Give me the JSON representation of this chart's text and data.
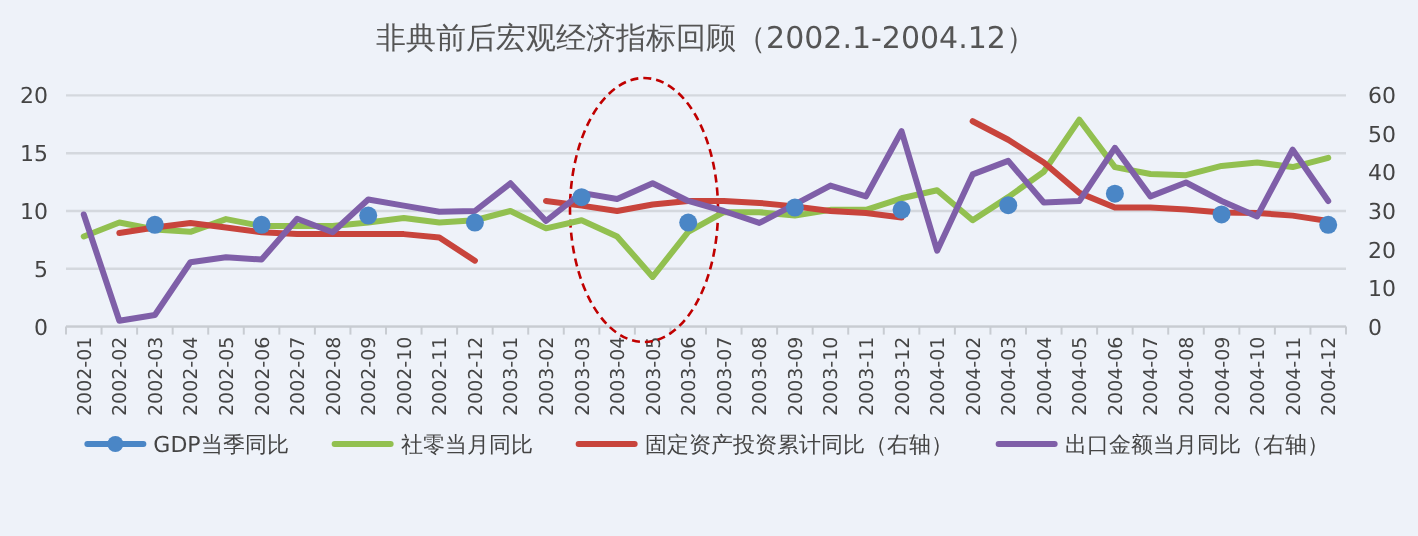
{
  "chart_data": {
    "type": "line",
    "title": "非典前后宏观经济指标回顾（2002.1-2004.12）",
    "categories": [
      "2002-01",
      "2002-02",
      "2002-03",
      "2002-04",
      "2002-05",
      "2002-06",
      "2002-07",
      "2002-08",
      "2002-09",
      "2002-10",
      "2002-11",
      "2002-12",
      "2003-01",
      "2003-02",
      "2003-03",
      "2003-04",
      "2003-05",
      "2003-06",
      "2003-07",
      "2003-08",
      "2003-09",
      "2003-10",
      "2003-11",
      "2003-12",
      "2004-01",
      "2004-02",
      "2004-03",
      "2004-04",
      "2004-05",
      "2004-06",
      "2004-07",
      "2004-08",
      "2004-09",
      "2004-10",
      "2004-11",
      "2004-12"
    ],
    "series": [
      {
        "name": "GDP当季同比",
        "type": "scatter",
        "marker": "circle",
        "color": "#4a86c6",
        "values": [
          null,
          null,
          8.8,
          null,
          null,
          8.8,
          null,
          null,
          9.6,
          null,
          null,
          9.0,
          null,
          null,
          11.2,
          null,
          null,
          9.0,
          null,
          null,
          10.3,
          null,
          null,
          10.1,
          null,
          null,
          10.5,
          null,
          null,
          11.5,
          null,
          null,
          9.7,
          null,
          null,
          8.8
        ]
      },
      {
        "name": "社零当月同比",
        "color": "#92c050",
        "values": [
          7.8,
          9.0,
          8.4,
          8.2,
          9.3,
          8.7,
          8.7,
          8.7,
          9.0,
          9.4,
          9.0,
          9.2,
          10.0,
          8.5,
          9.2,
          7.8,
          4.3,
          8.2,
          9.9,
          9.9,
          9.6,
          10.1,
          10.1,
          11.1,
          11.8,
          9.2,
          11.2,
          13.4,
          17.9,
          13.8,
          13.2,
          13.1,
          13.9,
          14.2,
          13.8,
          14.6
        ]
      },
      {
        "name": "固定资产投资累计同比（右轴）",
        "axis": "y2",
        "color": "#c8443c",
        "values": [
          null,
          24.3,
          25.7,
          26.9,
          25.7,
          24.5,
          24.0,
          24.0,
          24.0,
          24.0,
          23.1,
          17.1,
          null,
          32.6,
          31.4,
          30.0,
          31.7,
          32.6,
          32.6,
          32.1,
          31.2,
          30.0,
          29.5,
          28.3,
          null,
          53.3,
          48.5,
          42.6,
          34.7,
          30.9,
          30.9,
          30.4,
          29.6,
          29.5,
          28.8,
          27.4
        ]
      },
      {
        "name": "出口金额当月同比（右轴）",
        "axis": "y2",
        "color": "#7f5fa8",
        "values": [
          29.1,
          1.5,
          3.0,
          16.7,
          18.0,
          17.4,
          28.0,
          24.5,
          33.0,
          31.4,
          29.8,
          30.0,
          37.2,
          27.4,
          34.7,
          33.1,
          37.2,
          32.6,
          30.0,
          26.9,
          31.7,
          36.6,
          33.8,
          50.7,
          19.7,
          39.5,
          43.0,
          32.2,
          32.6,
          46.4,
          33.8,
          37.4,
          32.6,
          28.6,
          45.9,
          32.6
        ]
      }
    ],
    "ylim": [
      0,
      20
    ],
    "yticks": [
      0,
      5,
      10,
      15,
      20
    ],
    "y2lim": [
      0,
      60
    ],
    "y2ticks": [
      0,
      10,
      20,
      30,
      40,
      50,
      60
    ],
    "grid": "y",
    "legend": "bottom"
  }
}
